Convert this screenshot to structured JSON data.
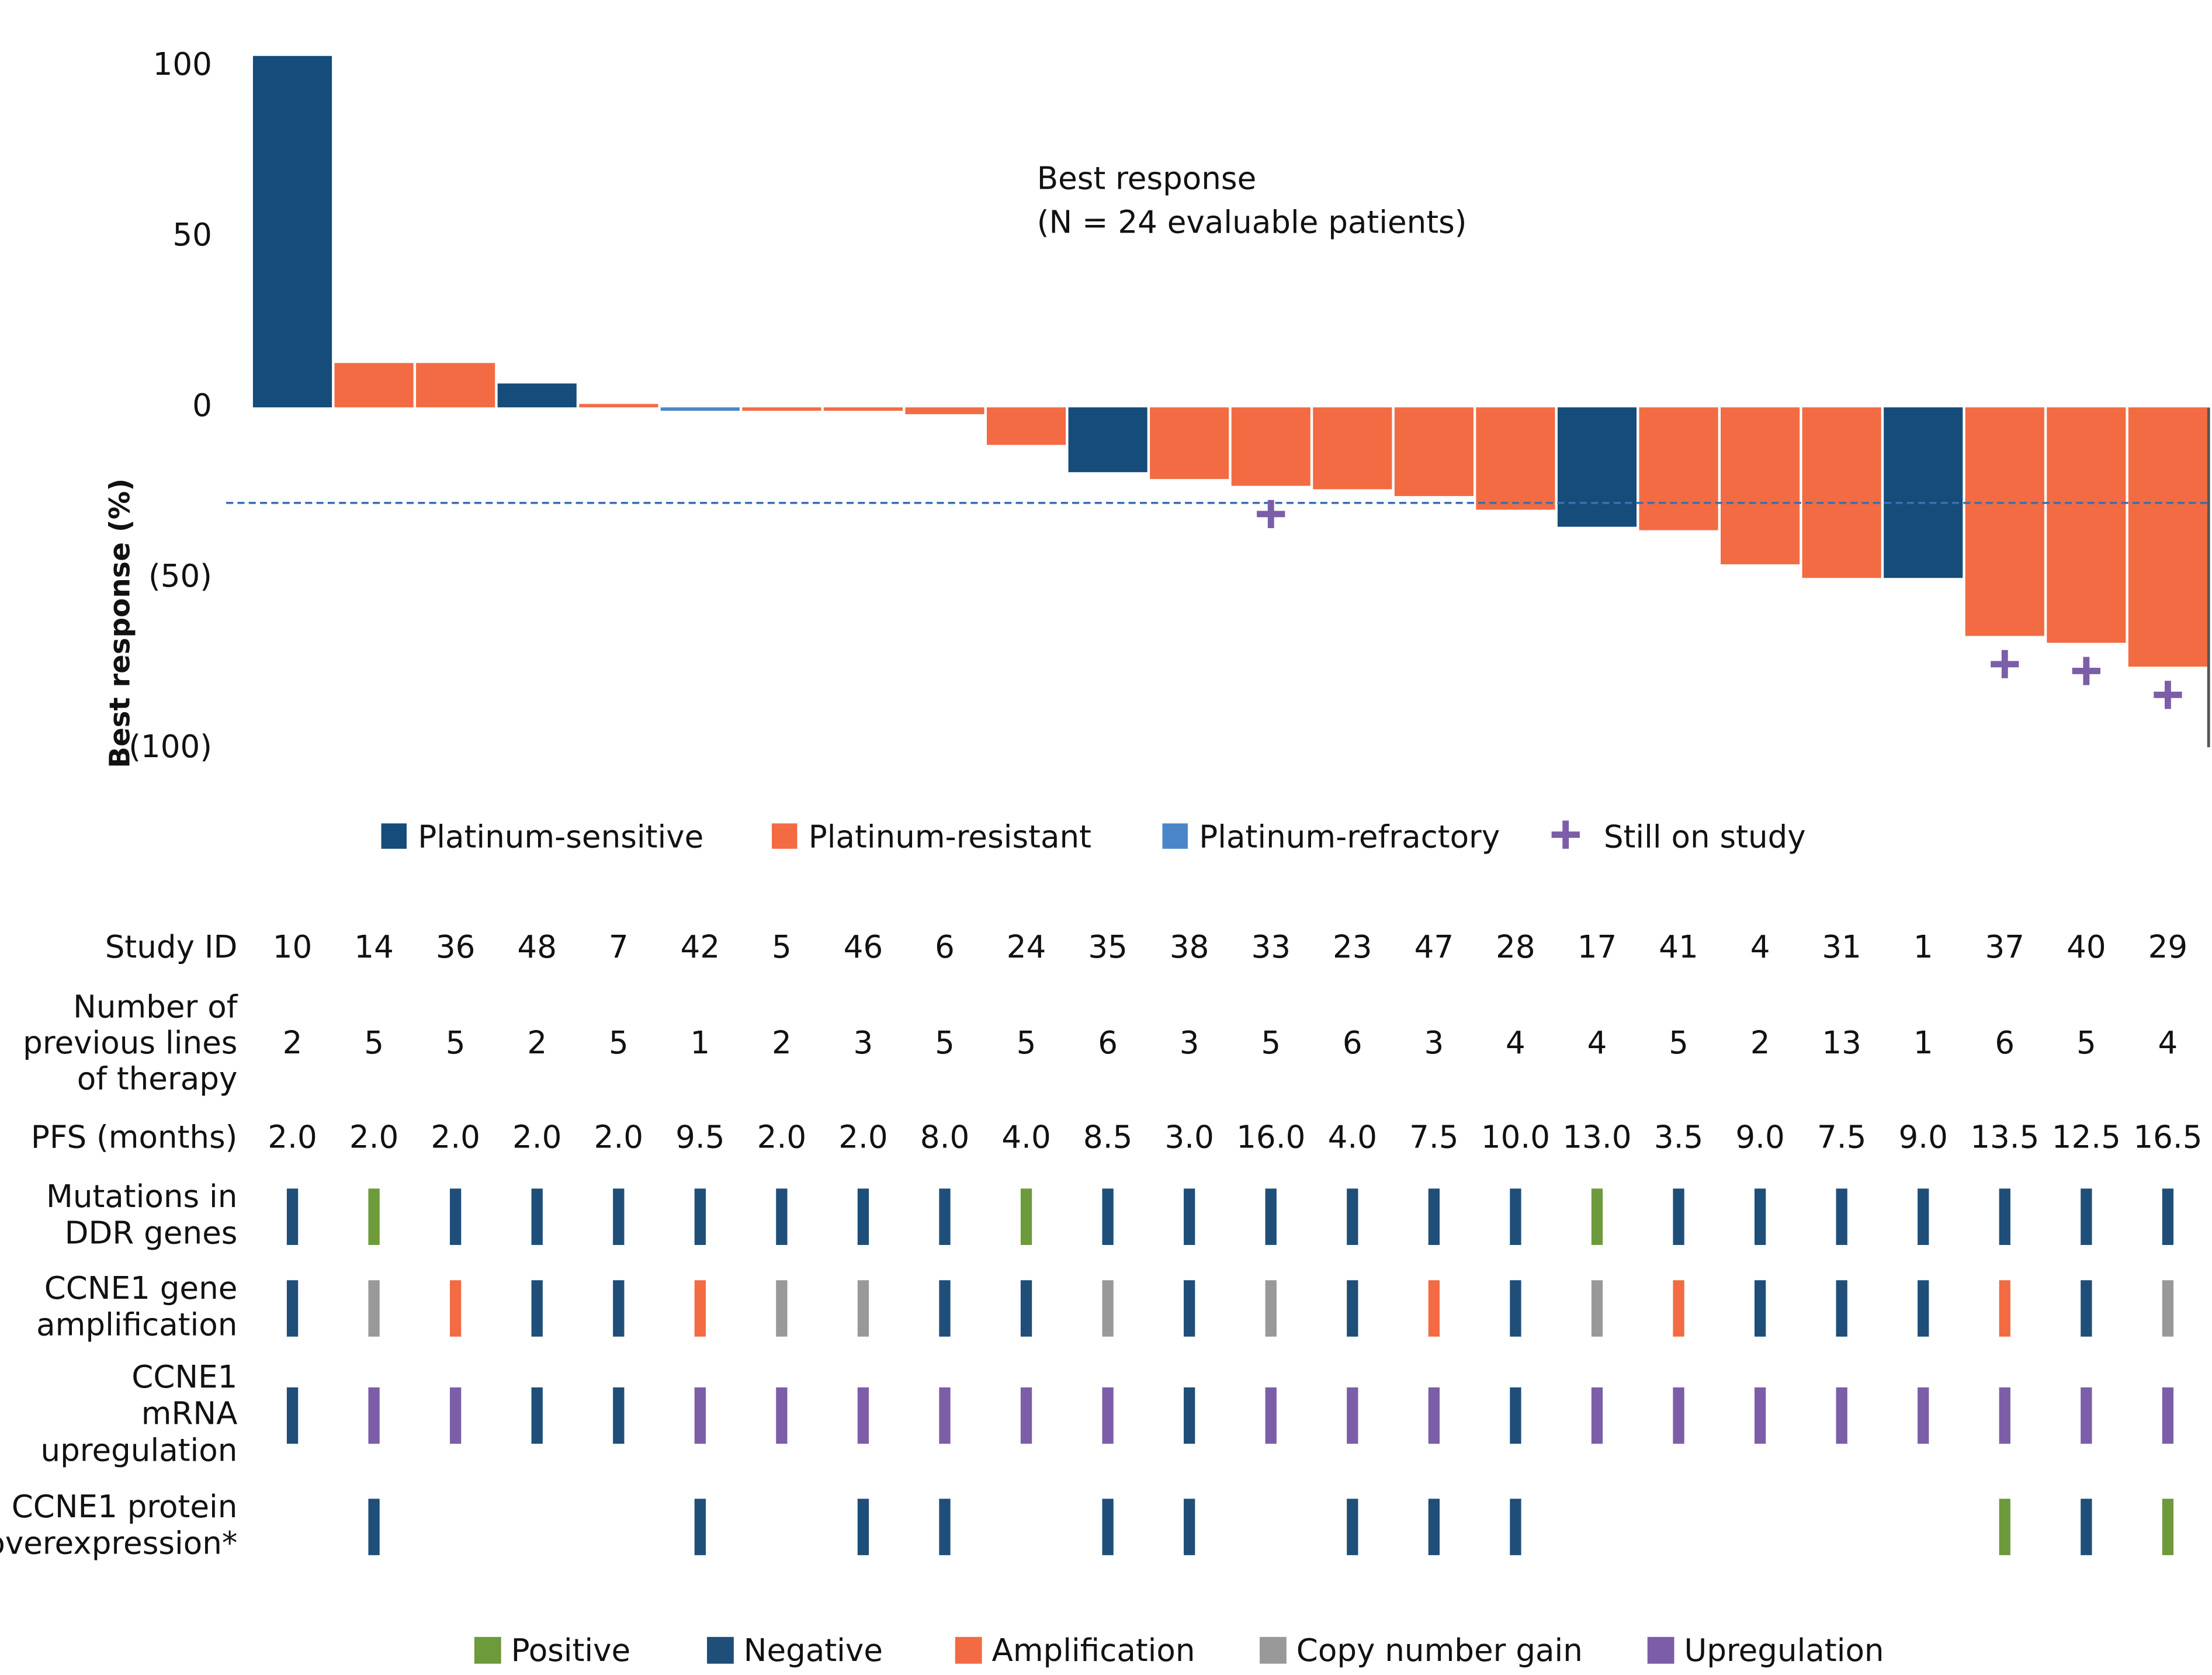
{
  "chart_data": {
    "type": "bar",
    "title": [
      "Best response",
      "(N = 24 evaluable patients)"
    ],
    "y_label": "Best response (%)",
    "categories": [
      10,
      14,
      36,
      48,
      7,
      42,
      5,
      46,
      6,
      24,
      35,
      38,
      33,
      23,
      47,
      28,
      17,
      41,
      4,
      31,
      1,
      37,
      40,
      29
    ],
    "values": [
      103,
      13,
      13,
      7,
      1,
      -1,
      -1,
      -1,
      -2,
      -11,
      -19,
      -21,
      -23,
      -24,
      -26,
      -30,
      -35,
      -36,
      -46,
      -50,
      -50,
      -67,
      -69,
      -76
    ],
    "groups": [
      "Platinum-sensitive",
      "Platinum-resistant",
      "Platinum-resistant",
      "Platinum-sensitive",
      "Platinum-resistant",
      "Platinum-refractory",
      "Platinum-resistant",
      "Platinum-resistant",
      "Platinum-resistant",
      "Platinum-resistant",
      "Platinum-sensitive",
      "Platinum-resistant",
      "Platinum-resistant",
      "Platinum-resistant",
      "Platinum-resistant",
      "Platinum-resistant",
      "Platinum-sensitive",
      "Platinum-resistant",
      "Platinum-resistant",
      "Platinum-resistant",
      "Platinum-sensitive",
      "Platinum-resistant",
      "Platinum-resistant",
      "Platinum-resistant"
    ],
    "legend": [
      {
        "name": "Platinum-sensitive",
        "color": "#154c79"
      },
      {
        "name": "Platinum-resistant",
        "color": "#f26b43"
      },
      {
        "name": "Platinum-refractory",
        "color": "#4a86c8"
      }
    ],
    "still_on_study": [
      false,
      false,
      false,
      false,
      false,
      false,
      false,
      false,
      false,
      false,
      false,
      false,
      true,
      false,
      false,
      false,
      false,
      false,
      false,
      false,
      false,
      true,
      true,
      true
    ],
    "still_on_study_legend": {
      "name": "Still on study",
      "color": "#7b5ea7"
    },
    "reference_line": -28,
    "ylim": [
      -105,
      107
    ],
    "yticks": [
      100,
      50,
      0,
      {
        "value": -50,
        "label": "(50)"
      },
      {
        "value": -100,
        "label": "(100)"
      }
    ]
  },
  "table": {
    "study_id_label": "Study ID",
    "rows": [
      {
        "label": [
          "Number of",
          "previous lines",
          "of therapy"
        ],
        "values": [
          2,
          5,
          5,
          2,
          5,
          1,
          2,
          3,
          5,
          5,
          6,
          3,
          5,
          6,
          3,
          4,
          4,
          5,
          2,
          13,
          1,
          6,
          5,
          4
        ]
      },
      {
        "label": [
          "PFS (months)"
        ],
        "values": [
          "2.0",
          "2.0",
          "2.0",
          "2.0",
          "2.0",
          "9.5",
          "2.0",
          "2.0",
          "8.0",
          "4.0",
          "8.5",
          "3.0",
          "16.0",
          "4.0",
          "7.5",
          "10.0",
          "13.0",
          "3.5",
          "9.0",
          "7.5",
          "9.0",
          "13.5",
          "12.5",
          "16.5"
        ]
      }
    ],
    "status_rows": [
      {
        "label": [
          "Mutations in",
          "DDR genes"
        ],
        "values": [
          "Negative",
          "Positive",
          "Negative",
          "Negative",
          "Negative",
          "Negative",
          "Negative",
          "Negative",
          "Negative",
          "Positive",
          "Negative",
          "Negative",
          "Negative",
          "Negative",
          "Negative",
          "Negative",
          "Positive",
          "Negative",
          "Negative",
          "Negative",
          "Negative",
          "Negative",
          "Negative",
          "Negative"
        ]
      },
      {
        "label": [
          "CCNE1 gene",
          "amplification"
        ],
        "values": [
          "Negative",
          "Copy number gain",
          "Amplification",
          "Negative",
          "Negative",
          "Amplification",
          "Copy number gain",
          "Copy number gain",
          "Negative",
          "Negative",
          "Copy number gain",
          "Negative",
          "Copy number gain",
          "Negative",
          "Amplification",
          "Negative",
          "Copy number gain",
          "Amplification",
          "Negative",
          "Negative",
          "Negative",
          "Amplification",
          "Negative",
          "Copy number gain"
        ]
      },
      {
        "label": [
          "CCNE1",
          "mRNA",
          "upregulation"
        ],
        "values": [
          "Negative",
          "Upregulation",
          "Upregulation",
          "Negative",
          "Negative",
          "Upregulation",
          "Upregulation",
          "Upregulation",
          "Upregulation",
          "Upregulation",
          "Upregulation",
          "Negative",
          "Upregulation",
          "Upregulation",
          "Upregulation",
          "Negative",
          "Upregulation",
          "Upregulation",
          "Upregulation",
          "Upregulation",
          "Upregulation",
          "Upregulation",
          "Upregulation",
          "Upregulation"
        ]
      },
      {
        "label": [
          "CCNE1 protein",
          "overexpression*"
        ],
        "values": [
          null,
          "Negative",
          null,
          null,
          null,
          "Negative",
          null,
          "Negative",
          "Negative",
          null,
          "Negative",
          "Negative",
          null,
          "Negative",
          "Negative",
          "Negative",
          null,
          null,
          null,
          null,
          null,
          "Positive",
          "Negative",
          "Positive"
        ]
      }
    ],
    "legend": [
      {
        "name": "Positive",
        "color": "#6d9a3a"
      },
      {
        "name": "Negative",
        "color": "#1f4e79"
      },
      {
        "name": "Amplification",
        "color": "#f26b43"
      },
      {
        "name": "Copy number gain",
        "color": "#999999"
      },
      {
        "name": "Upregulation",
        "color": "#7b5ea7"
      }
    ]
  }
}
